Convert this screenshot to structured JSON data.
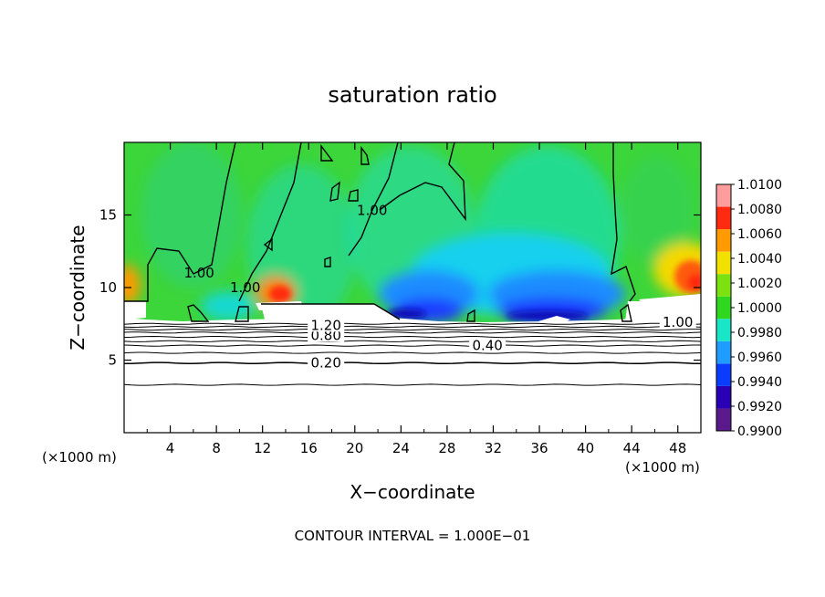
{
  "chart_data": {
    "type": "heatmap",
    "title": "saturation ratio",
    "xlabel": "X−coordinate",
    "ylabel": "Z−coordinate",
    "x_unit": "(×1000 m)",
    "z_unit": "(×1000 m)",
    "xlim": [
      0,
      50
    ],
    "ylim": [
      0,
      20
    ],
    "x_ticks": [
      4,
      8,
      12,
      16,
      20,
      24,
      28,
      32,
      36,
      40,
      44,
      48
    ],
    "x_tick_labels": [
      "4",
      "8",
      "12",
      "16",
      "20",
      "24",
      "28",
      "32",
      "36",
      "40",
      "44",
      "48"
    ],
    "y_ticks": [
      5,
      10,
      15
    ],
    "y_tick_labels": [
      "5",
      "10",
      "15"
    ],
    "colorbar": {
      "levels": [
        0.99,
        0.992,
        0.994,
        0.996,
        0.998,
        1.0,
        1.002,
        1.004,
        1.006,
        1.008,
        1.01
      ],
      "labels": [
        "0.9900",
        "0.9920",
        "0.9940",
        "0.9960",
        "0.9980",
        "1.0000",
        "1.0020",
        "1.0040",
        "1.0060",
        "1.0080",
        "1.0100"
      ],
      "colors": [
        "#5a1a8c",
        "#2a00b4",
        "#0a3cff",
        "#1f9cff",
        "#18e6c6",
        "#2fd81e",
        "#7be10f",
        "#f2e000",
        "#ff9a00",
        "#ff2a10",
        "#ff9c9c"
      ]
    },
    "contour_levels_z": [
      3.3,
      4.8,
      5.5,
      6.0,
      6.3,
      6.6,
      6.9,
      7.1,
      7.3,
      7.5
    ],
    "contour_labels": [
      {
        "text": "0.20",
        "x": 17.5,
        "z": 4.8
      },
      {
        "text": "0.40",
        "x": 31.5,
        "z": 6.0
      },
      {
        "text": "0.80",
        "x": 17.5,
        "z": 6.7
      },
      {
        "text": "1.20",
        "x": 17.5,
        "z": 7.4
      },
      {
        "text": "1.00",
        "x": 6.5,
        "z": 11.0
      },
      {
        "text": "1.00",
        "x": 10.5,
        "z": 10.0
      },
      {
        "text": "1.00",
        "x": 21.5,
        "z": 15.3
      },
      {
        "text": "1.00",
        "x": 48.0,
        "z": 7.6
      }
    ],
    "footnote": "CONTOUR INTERVAL = 1.000E−01"
  }
}
